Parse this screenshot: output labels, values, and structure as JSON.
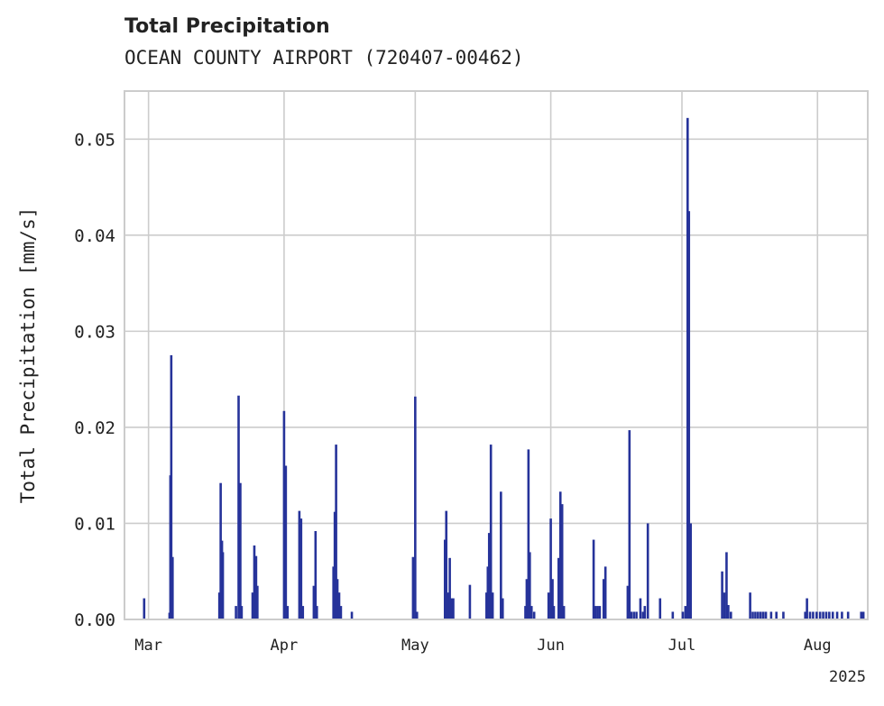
{
  "chart_data": {
    "type": "bar",
    "title": "Total Precipitation",
    "subtitle": "OCEAN COUNTY AIRPORT (720407-00462)",
    "xlabel": "",
    "ylabel": "Total Precipitation [mm/s]",
    "x_axis": "time (days since 2025-03-01)",
    "xlim": [
      -5.5,
      164.5
    ],
    "ylim": [
      0,
      0.055
    ],
    "yticks": [
      "0.00",
      "0.01",
      "0.02",
      "0.03",
      "0.04",
      "0.05"
    ],
    "ytick_values": [
      0,
      0.01,
      0.02,
      0.03,
      0.04,
      0.05
    ],
    "xticks": [
      {
        "label": "Mar",
        "day": 0
      },
      {
        "label": "Apr",
        "day": 31
      },
      {
        "label": "May",
        "day": 61
      },
      {
        "label": "Jun",
        "day": 92
      },
      {
        "label": "Jul",
        "day": 122
      },
      {
        "label": "Aug",
        "day": 153
      }
    ],
    "year_label": "2025",
    "grid": true,
    "color": "#26339a",
    "series": [
      {
        "name": "Total Precipitation",
        "points": [
          [
            -1.0,
            0.0022
          ],
          [
            4.8,
            0.0007
          ],
          [
            5.0,
            0.015
          ],
          [
            5.2,
            0.0275
          ],
          [
            5.5,
            0.0065
          ],
          [
            16.2,
            0.0028
          ],
          [
            16.5,
            0.0142
          ],
          [
            16.8,
            0.0082
          ],
          [
            17.0,
            0.007
          ],
          [
            20.0,
            0.0014
          ],
          [
            20.6,
            0.0233
          ],
          [
            21.0,
            0.0142
          ],
          [
            21.3,
            0.0014
          ],
          [
            23.8,
            0.0028
          ],
          [
            24.2,
            0.0077
          ],
          [
            24.6,
            0.0066
          ],
          [
            24.9,
            0.0035
          ],
          [
            31.0,
            0.0217
          ],
          [
            31.4,
            0.016
          ],
          [
            31.8,
            0.0014
          ],
          [
            34.5,
            0.0113
          ],
          [
            34.9,
            0.0105
          ],
          [
            35.3,
            0.0014
          ],
          [
            37.8,
            0.0035
          ],
          [
            38.2,
            0.0092
          ],
          [
            38.5,
            0.0014
          ],
          [
            42.3,
            0.0055
          ],
          [
            42.6,
            0.0112
          ],
          [
            42.9,
            0.0182
          ],
          [
            43.2,
            0.0042
          ],
          [
            43.6,
            0.0028
          ],
          [
            44.0,
            0.0014
          ],
          [
            46.5,
            0.0008
          ],
          [
            60.5,
            0.0065
          ],
          [
            61.0,
            0.0232
          ],
          [
            61.4,
            0.0008
          ],
          [
            67.8,
            0.0083
          ],
          [
            68.1,
            0.0113
          ],
          [
            68.5,
            0.0028
          ],
          [
            68.9,
            0.0064
          ],
          [
            69.3,
            0.0022
          ],
          [
            69.7,
            0.0022
          ],
          [
            73.5,
            0.0036
          ],
          [
            77.3,
            0.0028
          ],
          [
            77.6,
            0.0055
          ],
          [
            77.9,
            0.009
          ],
          [
            78.3,
            0.0182
          ],
          [
            78.7,
            0.0028
          ],
          [
            80.6,
            0.0133
          ],
          [
            81.0,
            0.0022
          ],
          [
            86.2,
            0.0014
          ],
          [
            86.5,
            0.0042
          ],
          [
            86.9,
            0.0177
          ],
          [
            87.2,
            0.007
          ],
          [
            87.6,
            0.0014
          ],
          [
            88.2,
            0.0008
          ],
          [
            91.5,
            0.0028
          ],
          [
            92.0,
            0.0105
          ],
          [
            92.4,
            0.0042
          ],
          [
            92.7,
            0.0014
          ],
          [
            93.8,
            0.0064
          ],
          [
            94.2,
            0.0133
          ],
          [
            94.6,
            0.012
          ],
          [
            95.0,
            0.0014
          ],
          [
            101.8,
            0.0083
          ],
          [
            102.2,
            0.0014
          ],
          [
            102.7,
            0.0014
          ],
          [
            103.2,
            0.0014
          ],
          [
            104.1,
            0.0042
          ],
          [
            104.5,
            0.0055
          ],
          [
            109.6,
            0.0035
          ],
          [
            110.0,
            0.0197
          ],
          [
            110.4,
            0.0008
          ],
          [
            111.0,
            0.0008
          ],
          [
            111.6,
            0.0008
          ],
          [
            112.5,
            0.0022
          ],
          [
            113.1,
            0.0008
          ],
          [
            113.5,
            0.0014
          ],
          [
            114.2,
            0.01
          ],
          [
            117.0,
            0.0022
          ],
          [
            119.9,
            0.0008
          ],
          [
            122.2,
            0.0008
          ],
          [
            122.8,
            0.0014
          ],
          [
            123.3,
            0.0522
          ],
          [
            123.6,
            0.0425
          ],
          [
            124.0,
            0.01
          ],
          [
            131.2,
            0.005
          ],
          [
            131.7,
            0.0028
          ],
          [
            132.2,
            0.007
          ],
          [
            132.6,
            0.0015
          ],
          [
            133.2,
            0.0008
          ],
          [
            137.6,
            0.0028
          ],
          [
            138.2,
            0.0008
          ],
          [
            138.8,
            0.0008
          ],
          [
            139.4,
            0.0008
          ],
          [
            140.0,
            0.0008
          ],
          [
            140.6,
            0.0008
          ],
          [
            141.2,
            0.0008
          ],
          [
            142.4,
            0.0008
          ],
          [
            143.6,
            0.0008
          ],
          [
            145.2,
            0.0008
          ],
          [
            150.2,
            0.0008
          ],
          [
            150.6,
            0.0022
          ],
          [
            151.3,
            0.0008
          ],
          [
            152.0,
            0.0008
          ],
          [
            152.8,
            0.0008
          ],
          [
            153.6,
            0.0008
          ],
          [
            154.3,
            0.0008
          ],
          [
            155.0,
            0.0008
          ],
          [
            155.7,
            0.0008
          ],
          [
            156.5,
            0.0008
          ],
          [
            157.5,
            0.0008
          ],
          [
            158.6,
            0.0008
          ],
          [
            160.0,
            0.0008
          ],
          [
            163.0,
            0.0008
          ],
          [
            163.5,
            0.0008
          ]
        ]
      }
    ]
  }
}
